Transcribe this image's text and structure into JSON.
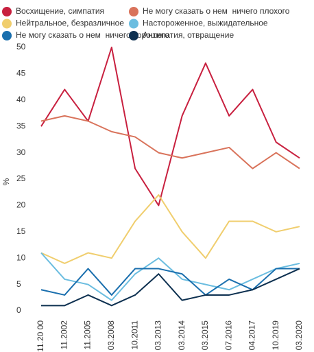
{
  "chart_data": {
    "type": "line",
    "categories": [
      "11.20 00",
      "11.2002",
      "11.2005",
      "03.2008",
      "10.2011",
      "03.2013",
      "03.2014",
      "03.2015",
      "07.2016",
      "04.2017",
      "10.2019",
      "03.2020"
    ],
    "y_label": "%",
    "ylim": [
      0,
      50
    ],
    "yticks": [
      0,
      5,
      10,
      15,
      20,
      25,
      30,
      35,
      40,
      45,
      50
    ],
    "series": [
      {
        "name": "Восхищение, симпатия",
        "color": "#c8203f",
        "values": [
          35,
          42,
          36,
          50,
          27,
          20,
          37,
          47,
          37,
          42,
          32,
          29
        ]
      },
      {
        "name": "Не могу сказать о нем  ничего плохого",
        "color": "#d9735b",
        "values": [
          36,
          37,
          36,
          34,
          33,
          30,
          29,
          30,
          31,
          27,
          30,
          27
        ]
      },
      {
        "name": "Нейтральное, безразличное",
        "color": "#f0ce6e",
        "values": [
          11,
          9,
          11,
          10,
          17,
          22,
          15,
          10,
          17,
          17,
          15,
          16
        ]
      },
      {
        "name": "Настороженное, выжидательное",
        "color": "#6bbde0",
        "values": [
          11,
          6,
          5,
          2,
          7,
          10,
          6,
          5,
          4,
          6,
          8,
          9
        ]
      },
      {
        "name": "Не могу сказать о нем  ничего хорошего",
        "color": "#1a6fae",
        "values": [
          4,
          3,
          8,
          3,
          8,
          8,
          7,
          3,
          6,
          4,
          8,
          8
        ]
      },
      {
        "name": "Антипатия, отвращение",
        "color": "#0d3050",
        "values": [
          1,
          1,
          3,
          1,
          3,
          7,
          2,
          3,
          3,
          4,
          6,
          8
        ]
      }
    ]
  }
}
